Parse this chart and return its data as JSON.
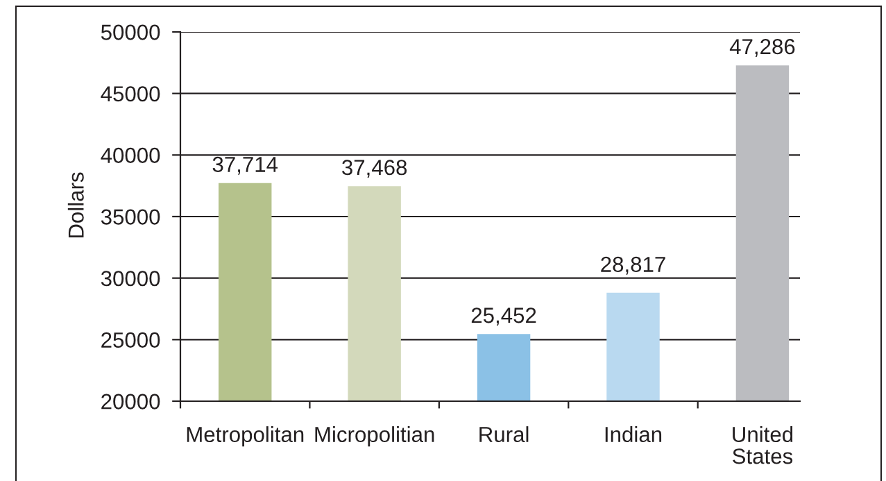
{
  "chart_data": {
    "type": "bar",
    "ylabel": "Dollars",
    "categories": [
      "Metropolitan",
      "Micropolitian",
      "Rural",
      "Indian",
      "United\nStates"
    ],
    "values": [
      37714,
      37468,
      25452,
      28817,
      47286
    ],
    "colors": [
      "#b5c28c",
      "#d3d9bb",
      "#8bc1e6",
      "#b9d9f0",
      "#bbbcc0"
    ],
    "value_labels": [
      "37,714",
      "37,468",
      "25,452",
      "28,817",
      "47,286"
    ],
    "ylim": [
      20000,
      50000
    ],
    "yticks": [
      20000,
      25000,
      30000,
      35000,
      40000,
      45000,
      50000
    ],
    "grid": "y"
  }
}
